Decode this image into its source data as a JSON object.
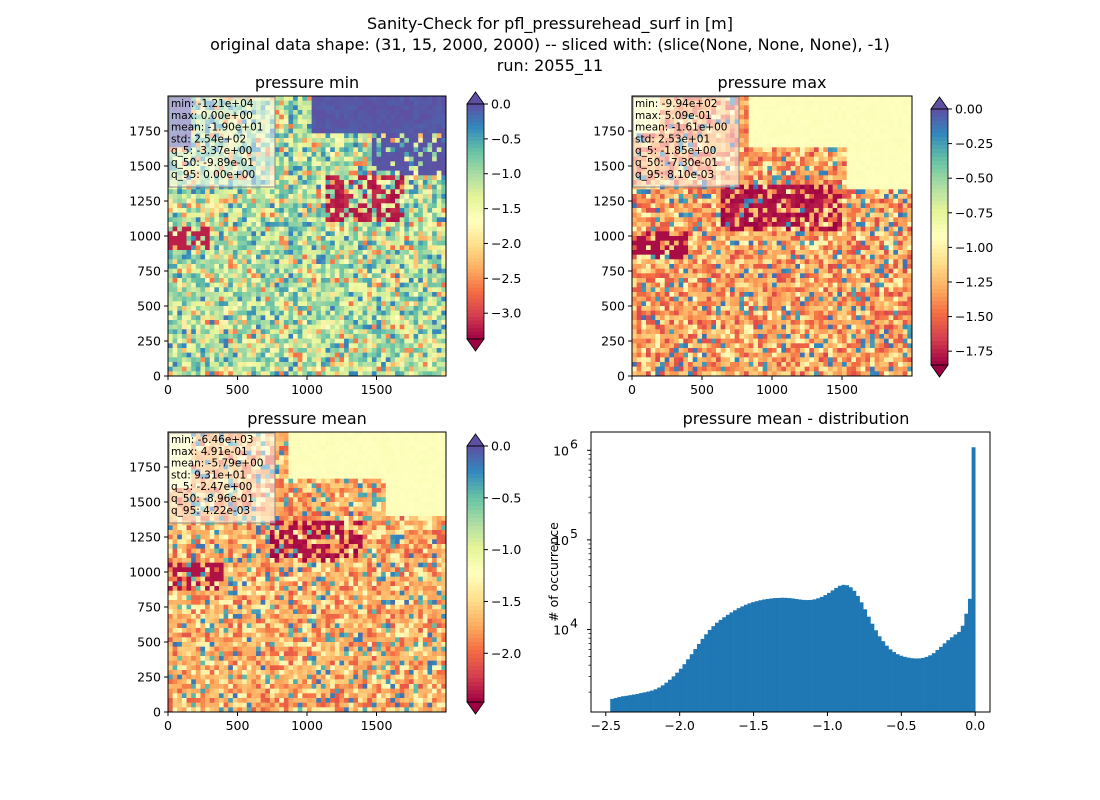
{
  "suptitle": [
    "Sanity-Check for pfl_pressurehead_surf in [m]",
    "original data shape: (31, 15, 2000, 2000) -- sliced with: (slice(None, None, None), -1)",
    "run: 2055_11"
  ],
  "chart_data": [
    {
      "type": "heatmap",
      "title": "pressure min",
      "colormap": "Spectral",
      "xlim": [
        0,
        2000
      ],
      "ylim": [
        0,
        2000
      ],
      "x_ticks": [
        "0",
        "500",
        "1000",
        "1500"
      ],
      "y_ticks": [
        "0",
        "250",
        "500",
        "750",
        "1000",
        "1250",
        "1500",
        "1750"
      ],
      "colorbar_range": [
        -3.37,
        0.0
      ],
      "colorbar_ticks": [
        {
          "value": 0.0,
          "label": "0.0"
        },
        {
          "value": -0.5,
          "label": "−0.5"
        },
        {
          "value": -1.0,
          "label": "−1.0"
        },
        {
          "value": -1.5,
          "label": "−1.5"
        },
        {
          "value": -2.0,
          "label": "−2.0"
        },
        {
          "value": -2.5,
          "label": "−2.5"
        },
        {
          "value": -3.0,
          "label": "−3.0"
        }
      ],
      "colorbar_extend": "both",
      "stats": [
        "min: -1.21e+04",
        "max: 0.00e+00",
        "mean: -1.90e+01",
        "std: 2.54e+02",
        "q_5: -3.37e+00",
        "q_50: -9.89e-01",
        "q_95: 0.00e+00"
      ]
    },
    {
      "type": "heatmap",
      "title": "pressure max",
      "colormap": "Spectral",
      "xlim": [
        0,
        2000
      ],
      "ylim": [
        0,
        2000
      ],
      "x_ticks": [
        "0",
        "500",
        "1000",
        "1500"
      ],
      "y_ticks": [
        "0",
        "250",
        "500",
        "750",
        "1000",
        "1250",
        "1500",
        "1750"
      ],
      "colorbar_range": [
        -1.85,
        0.0
      ],
      "colorbar_ticks": [
        {
          "value": 0.0,
          "label": "0.00"
        },
        {
          "value": -0.25,
          "label": "−0.25"
        },
        {
          "value": -0.5,
          "label": "−0.50"
        },
        {
          "value": -0.75,
          "label": "−0.75"
        },
        {
          "value": -1.0,
          "label": "−1.00"
        },
        {
          "value": -1.25,
          "label": "−1.25"
        },
        {
          "value": -1.5,
          "label": "−1.50"
        },
        {
          "value": -1.75,
          "label": "−1.75"
        }
      ],
      "colorbar_extend": "both",
      "stats": [
        "min: -9.94e+02",
        "max: 5.09e-01",
        "mean: -1.61e+00",
        "std: 2.53e+01",
        "q_5: -1.85e+00",
        "q_50: -7.30e-01",
        "q_95: 8.10e-03"
      ]
    },
    {
      "type": "heatmap",
      "title": "pressure mean",
      "colormap": "Spectral",
      "xlim": [
        0,
        2000
      ],
      "ylim": [
        0,
        2000
      ],
      "x_ticks": [
        "0",
        "500",
        "1000",
        "1500"
      ],
      "y_ticks": [
        "0",
        "250",
        "500",
        "750",
        "1000",
        "1250",
        "1500",
        "1750"
      ],
      "colorbar_range": [
        -2.47,
        0.0
      ],
      "colorbar_ticks": [
        {
          "value": 0.0,
          "label": "0.0"
        },
        {
          "value": -0.5,
          "label": "−0.5"
        },
        {
          "value": -1.0,
          "label": "−1.0"
        },
        {
          "value": -1.5,
          "label": "−1.5"
        },
        {
          "value": -2.0,
          "label": "−2.0"
        }
      ],
      "colorbar_extend": "both",
      "stats": [
        "min: -6.46e+03",
        "max: 4.91e-01",
        "mean: -5.79e+00",
        "std: 9.31e+01",
        "q_5: -2.47e+00",
        "q_50: -8.96e-01",
        "q_95: 4.22e-03"
      ]
    },
    {
      "type": "bar",
      "title": "pressure mean - distribution",
      "ylabel": "# of occurrence",
      "xlabel": "",
      "yscale": "log",
      "xlim": [
        -2.6,
        0.1
      ],
      "ylim": [
        1200,
        1600000
      ],
      "x_ticks": [
        {
          "value": -2.5,
          "label": "−2.5"
        },
        {
          "value": -2.0,
          "label": "−2.0"
        },
        {
          "value": -1.5,
          "label": "−1.5"
        },
        {
          "value": -1.0,
          "label": "−1.0"
        },
        {
          "value": -0.5,
          "label": "−0.5"
        },
        {
          "value": 0.0,
          "label": "0.0"
        }
      ],
      "y_ticks": [
        {
          "value": 10000,
          "base": "10",
          "exp": "4"
        },
        {
          "value": 100000,
          "base": "10",
          "exp": "5"
        },
        {
          "value": 1000000,
          "base": "10",
          "exp": "6"
        }
      ],
      "bar_color": "#1f77b4",
      "bin_range": [
        -2.47,
        0.0
      ],
      "counts": [
        1680,
        1720,
        1760,
        1800,
        1820,
        1850,
        1880,
        1910,
        1950,
        1990,
        2030,
        2080,
        2150,
        2250,
        2380,
        2550,
        2750,
        3000,
        3300,
        3650,
        4100,
        4650,
        5300,
        6050,
        6900,
        7850,
        8850,
        9900,
        10900,
        11900,
        12800,
        13700,
        14600,
        15500,
        16400,
        17300,
        18100,
        18900,
        19600,
        20200,
        20700,
        21200,
        21600,
        21900,
        22200,
        22400,
        22500,
        22600,
        22550,
        22400,
        22200,
        21900,
        21600,
        21400,
        21300,
        21400,
        21700,
        22300,
        23100,
        24200,
        25600,
        27300,
        29100,
        30700,
        31500,
        31200,
        29600,
        27000,
        23700,
        20100,
        16800,
        13900,
        11600,
        9800,
        8400,
        7400,
        6600,
        6000,
        5600,
        5300,
        5100,
        4950,
        4850,
        4780,
        4750,
        4760,
        4820,
        4950,
        5150,
        5450,
        5900,
        6400,
        7000,
        7600,
        8200,
        8800,
        9400,
        11000,
        15000,
        22000,
        1080000
      ]
    }
  ]
}
